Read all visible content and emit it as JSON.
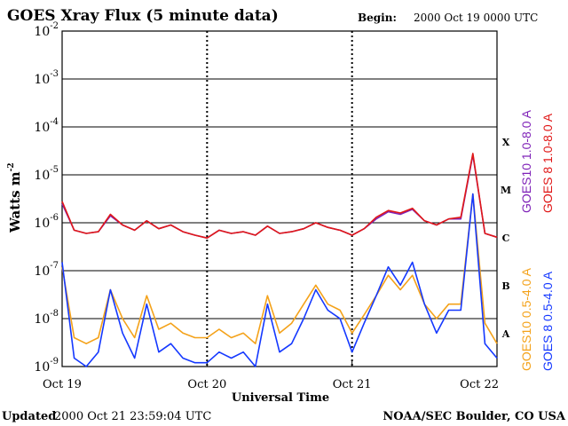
{
  "title": "GOES Xray Flux (5 minute data)",
  "begin_label": "Begin:",
  "begin_value": "2000 Oct 19 0000 UTC",
  "ylabel": "Watts m",
  "ylabel_exp": "-2",
  "xlabel": "Universal Time",
  "updated_label": "Updated",
  "updated_value": "2000 Oct 21 23:59:04 UTC",
  "credit": "NOAA/SEC Boulder, CO USA",
  "flare_classes": [
    "X",
    "M",
    "C",
    "B",
    "A"
  ],
  "colors": {
    "goes10_long": "#7f22b8",
    "goes8_long": "#e01818",
    "goes10_short": "#f4a21a",
    "goes8_short": "#1438ff"
  },
  "chart_data": {
    "type": "line",
    "yscale": "log",
    "ylim": [
      1e-09,
      0.01
    ],
    "xlim": [
      "2000-10-19",
      "2000-10-22"
    ],
    "x_ticks": [
      "Oct 19",
      "Oct 20",
      "Oct 21",
      "Oct 22"
    ],
    "y_ticks": [
      "10",
      "10",
      "10",
      "10",
      "10",
      "10",
      "10",
      "10"
    ],
    "y_tick_exps": [
      "-2",
      "-3",
      "-4",
      "-5",
      "-6",
      "-7",
      "-8",
      "-9"
    ],
    "y_tick_values": [
      0.01,
      0.001,
      0.0001,
      1e-05,
      1e-06,
      1e-07,
      1e-08,
      1e-09
    ],
    "grid": true,
    "x": [
      "2000-10-19 00:00",
      "2000-10-19 02:00",
      "2000-10-19 04:00",
      "2000-10-19 06:00",
      "2000-10-19 08:00",
      "2000-10-19 10:00",
      "2000-10-19 12:00",
      "2000-10-19 14:00",
      "2000-10-19 16:00",
      "2000-10-19 18:00",
      "2000-10-19 20:00",
      "2000-10-19 22:00",
      "2000-10-20 00:00",
      "2000-10-20 02:00",
      "2000-10-20 04:00",
      "2000-10-20 06:00",
      "2000-10-20 08:00",
      "2000-10-20 10:00",
      "2000-10-20 12:00",
      "2000-10-20 14:00",
      "2000-10-20 16:00",
      "2000-10-20 18:00",
      "2000-10-20 20:00",
      "2000-10-20 22:00",
      "2000-10-21 00:00",
      "2000-10-21 02:00",
      "2000-10-21 04:00",
      "2000-10-21 06:00",
      "2000-10-21 08:00",
      "2000-10-21 10:00",
      "2000-10-21 12:00",
      "2000-10-21 14:00",
      "2000-10-21 16:00",
      "2000-10-21 18:00",
      "2000-10-21 20:00",
      "2000-10-21 22:00",
      "2000-10-22 00:00"
    ],
    "series": [
      {
        "name": "GOES10 1.0-8.0 A",
        "values": [
          2.5e-06,
          7e-07,
          6e-07,
          6.5e-07,
          1.4e-06,
          9e-07,
          7e-07,
          1.1e-06,
          7.5e-07,
          9e-07,
          6.5e-07,
          5.5e-07,
          4.8e-07,
          7e-07,
          6e-07,
          6.5e-07,
          5.5e-07,
          8.5e-07,
          6e-07,
          6.5e-07,
          7.5e-07,
          1e-06,
          8e-07,
          7e-07,
          5.5e-07,
          7.5e-07,
          1.2e-06,
          1.7e-06,
          1.5e-06,
          1.9e-06,
          1.1e-06,
          9e-07,
          1.2e-06,
          1.2e-06,
          2.6e-05,
          6e-07,
          5e-07
        ]
      },
      {
        "name": "GOES 8 1.0-8.0 A",
        "values": [
          2.8e-06,
          7e-07,
          6e-07,
          6.5e-07,
          1.5e-06,
          9e-07,
          7e-07,
          1.1e-06,
          7.5e-07,
          9e-07,
          6.5e-07,
          5.5e-07,
          4.8e-07,
          7e-07,
          6e-07,
          6.5e-07,
          5.5e-07,
          8.5e-07,
          6e-07,
          6.5e-07,
          7.5e-07,
          1e-06,
          8e-07,
          7e-07,
          5.5e-07,
          7.5e-07,
          1.3e-06,
          1.8e-06,
          1.6e-06,
          2e-06,
          1.1e-06,
          9e-07,
          1.2e-06,
          1.3e-06,
          2.8e-05,
          6e-07,
          5e-07
        ]
      },
      {
        "name": "GOES10 0.5-4.0 A",
        "values": [
          1.2e-07,
          4e-09,
          3e-09,
          4e-09,
          4e-08,
          1e-08,
          4e-09,
          3e-08,
          6e-09,
          8e-09,
          5e-09,
          4e-09,
          4e-09,
          6e-09,
          4e-09,
          5e-09,
          3e-09,
          3e-08,
          5e-09,
          8e-09,
          2e-08,
          5e-08,
          2e-08,
          1.5e-08,
          5e-09,
          1.2e-08,
          3e-08,
          8e-08,
          4e-08,
          8e-08,
          2e-08,
          1e-08,
          2e-08,
          2e-08,
          4e-06,
          8e-09,
          3e-09
        ]
      },
      {
        "name": "GOES 8 0.5-4.0 A",
        "values": [
          1.5e-07,
          1.5e-09,
          1e-09,
          2e-09,
          4e-08,
          5e-09,
          1.5e-09,
          2e-08,
          2e-09,
          3e-09,
          1.5e-09,
          1.2e-09,
          1.2e-09,
          2e-09,
          1.5e-09,
          2e-09,
          1e-09,
          2e-08,
          2e-09,
          3e-09,
          1e-08,
          4e-08,
          1.5e-08,
          1e-08,
          2e-09,
          8e-09,
          3e-08,
          1.2e-07,
          5e-08,
          1.5e-07,
          2e-08,
          5e-09,
          1.5e-08,
          1.5e-08,
          4e-06,
          3e-09,
          1.5e-09
        ]
      }
    ]
  }
}
